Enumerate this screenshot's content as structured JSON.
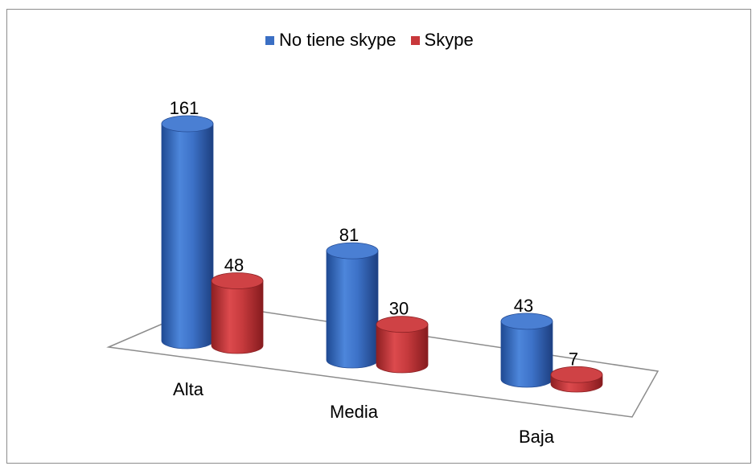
{
  "chart_data": {
    "type": "bar",
    "style": "3d-cylinder",
    "categories": [
      "Alta",
      "Media",
      "Baja"
    ],
    "series": [
      {
        "name": "No tiene skype",
        "values": [
          161,
          81,
          43
        ],
        "color": "#3b6fc4"
      },
      {
        "name": "Skype",
        "values": [
          48,
          30,
          7
        ],
        "color": "#c8383b"
      }
    ],
    "title": "",
    "xlabel": "",
    "ylabel": "",
    "ylim": [
      0,
      161
    ],
    "grid": false,
    "legend": "top-center"
  }
}
